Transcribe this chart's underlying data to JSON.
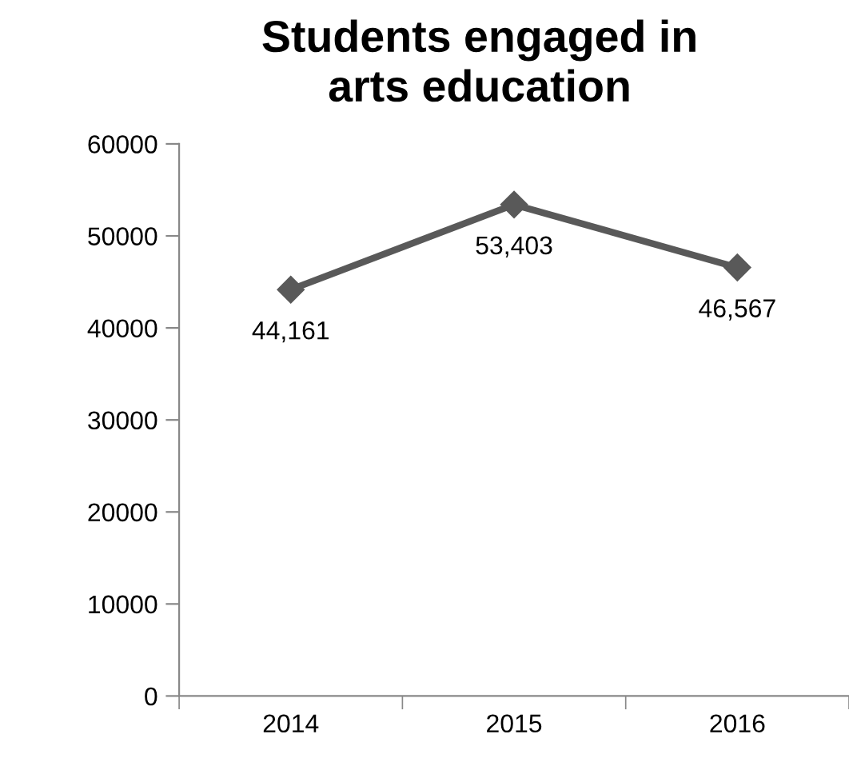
{
  "chart_data": {
    "type": "line",
    "title": "Students engaged in\narts education",
    "categories": [
      "2014",
      "2015",
      "2016"
    ],
    "series": [
      {
        "color": "#595959",
        "values": [
          44161,
          53403,
          46567
        ],
        "value_labels": [
          "44,161",
          "53,403",
          "46,567"
        ]
      }
    ],
    "ylim": [
      0,
      60000
    ],
    "yticks": [
      0,
      10000,
      20000,
      30000,
      40000,
      50000,
      60000
    ],
    "marker": "diamond",
    "grid": false,
    "legend": false
  }
}
